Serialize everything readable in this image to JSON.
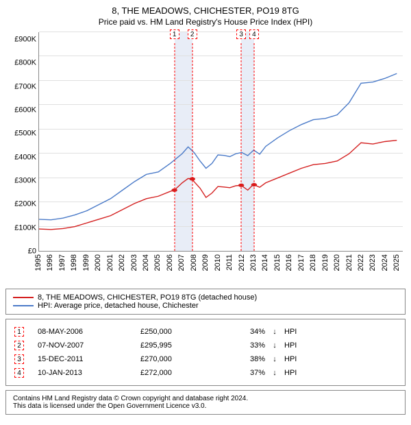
{
  "title": "8, THE MEADOWS, CHICHESTER, PO19 8TG",
  "subtitle": "Price paid vs. HM Land Registry's House Price Index (HPI)",
  "chart": {
    "type": "line",
    "ylim": [
      0,
      900000
    ],
    "ytick_step": 100000,
    "ylabels": [
      "£0",
      "£100K",
      "£200K",
      "£300K",
      "£400K",
      "£500K",
      "£600K",
      "£700K",
      "£800K",
      "£900K"
    ],
    "xlim": [
      1995,
      2025.5
    ],
    "xlabels": [
      "1995",
      "1996",
      "1997",
      "1998",
      "1999",
      "2000",
      "2001",
      "2002",
      "2003",
      "2004",
      "2005",
      "2006",
      "2007",
      "2008",
      "2009",
      "2010",
      "2011",
      "2012",
      "2013",
      "2014",
      "2015",
      "2016",
      "2017",
      "2018",
      "2019",
      "2020",
      "2021",
      "2022",
      "2023",
      "2024",
      "2025"
    ],
    "background_color": "#ffffff",
    "grid_color": "#e0e0e0",
    "axis_color": "#888888",
    "series": [
      {
        "name": "8, THE MEADOWS, CHICHESTER, PO19 8TG (detached house)",
        "color": "#d42020",
        "line_width": 1.4,
        "data": [
          [
            1995,
            90000
          ],
          [
            1996,
            88000
          ],
          [
            1997,
            92000
          ],
          [
            1998,
            100000
          ],
          [
            1999,
            115000
          ],
          [
            2000,
            130000
          ],
          [
            2001,
            145000
          ],
          [
            2002,
            170000
          ],
          [
            2003,
            195000
          ],
          [
            2004,
            215000
          ],
          [
            2005,
            225000
          ],
          [
            2006,
            245000
          ],
          [
            2006.35,
            250000
          ],
          [
            2007,
            280000
          ],
          [
            2007.5,
            298000
          ],
          [
            2007.85,
            295995
          ],
          [
            2008,
            285000
          ],
          [
            2008.5,
            258000
          ],
          [
            2009,
            220000
          ],
          [
            2009.5,
            238000
          ],
          [
            2010,
            265000
          ],
          [
            2010.5,
            263000
          ],
          [
            2011,
            260000
          ],
          [
            2011.5,
            268000
          ],
          [
            2011.95,
            270000
          ],
          [
            2012.5,
            250000
          ],
          [
            2013,
            275000
          ],
          [
            2013.03,
            272000
          ],
          [
            2013.5,
            262000
          ],
          [
            2014,
            280000
          ],
          [
            2015,
            300000
          ],
          [
            2016,
            320000
          ],
          [
            2017,
            340000
          ],
          [
            2018,
            355000
          ],
          [
            2019,
            360000
          ],
          [
            2020,
            370000
          ],
          [
            2021,
            400000
          ],
          [
            2022,
            445000
          ],
          [
            2023,
            440000
          ],
          [
            2024,
            450000
          ],
          [
            2025,
            455000
          ]
        ]
      },
      {
        "name": "HPI: Average price, detached house, Chichester",
        "color": "#4a7ac8",
        "line_width": 1.4,
        "data": [
          [
            1995,
            130000
          ],
          [
            1996,
            128000
          ],
          [
            1997,
            135000
          ],
          [
            1998,
            148000
          ],
          [
            1999,
            165000
          ],
          [
            2000,
            190000
          ],
          [
            2001,
            215000
          ],
          [
            2002,
            250000
          ],
          [
            2003,
            285000
          ],
          [
            2004,
            315000
          ],
          [
            2005,
            325000
          ],
          [
            2006,
            360000
          ],
          [
            2007,
            400000
          ],
          [
            2007.5,
            428000
          ],
          [
            2008,
            405000
          ],
          [
            2008.5,
            370000
          ],
          [
            2009,
            340000
          ],
          [
            2009.5,
            360000
          ],
          [
            2010,
            395000
          ],
          [
            2010.5,
            393000
          ],
          [
            2011,
            388000
          ],
          [
            2011.5,
            400000
          ],
          [
            2012,
            405000
          ],
          [
            2012.5,
            392000
          ],
          [
            2013,
            415000
          ],
          [
            2013.5,
            398000
          ],
          [
            2014,
            430000
          ],
          [
            2015,
            465000
          ],
          [
            2016,
            495000
          ],
          [
            2017,
            520000
          ],
          [
            2018,
            540000
          ],
          [
            2019,
            545000
          ],
          [
            2020,
            560000
          ],
          [
            2021,
            610000
          ],
          [
            2022,
            690000
          ],
          [
            2023,
            695000
          ],
          [
            2024,
            710000
          ],
          [
            2025,
            730000
          ]
        ]
      }
    ],
    "markers": [
      {
        "idx": 1,
        "x": 2006.35,
        "y": 250000
      },
      {
        "idx": 2,
        "x": 2007.85,
        "y": 295995
      },
      {
        "idx": 3,
        "x": 2011.95,
        "y": 270000
      },
      {
        "idx": 4,
        "x": 2013.03,
        "y": 272000
      }
    ],
    "shaded_ranges": [
      {
        "x0": 2006.35,
        "x1": 2007.85,
        "color": "#e8edf7"
      },
      {
        "x0": 2011.95,
        "x1": 2013.03,
        "color": "#e8edf7"
      }
    ]
  },
  "legend": {
    "items": [
      {
        "color": "#d42020",
        "label": "8, THE MEADOWS, CHICHESTER, PO19 8TG (detached house)"
      },
      {
        "color": "#4a7ac8",
        "label": "HPI: Average price, detached house, Chichester"
      }
    ]
  },
  "transactions": [
    {
      "idx": "1",
      "date": "08-MAY-2006",
      "price": "£250,000",
      "pct": "34%",
      "arrow": "↓",
      "vs": "HPI"
    },
    {
      "idx": "2",
      "date": "07-NOV-2007",
      "price": "£295,995",
      "pct": "33%",
      "arrow": "↓",
      "vs": "HPI"
    },
    {
      "idx": "3",
      "date": "15-DEC-2011",
      "price": "£270,000",
      "pct": "38%",
      "arrow": "↓",
      "vs": "HPI"
    },
    {
      "idx": "4",
      "date": "10-JAN-2013",
      "price": "£272,000",
      "pct": "37%",
      "arrow": "↓",
      "vs": "HPI"
    }
  ],
  "attribution_line1": "Contains HM Land Registry data © Crown copyright and database right 2024.",
  "attribution_line2": "This data is licensed under the Open Government Licence v3.0."
}
